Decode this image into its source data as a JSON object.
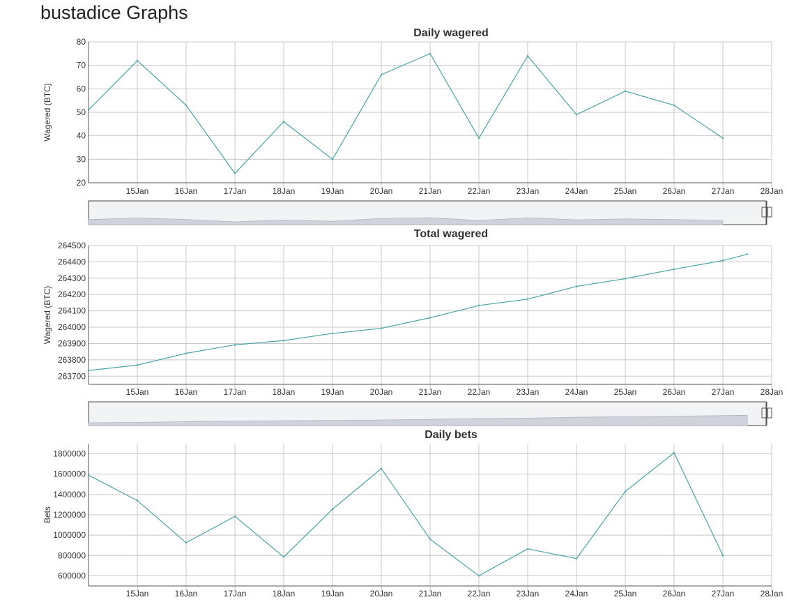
{
  "page": {
    "title": "bustadice Graphs"
  },
  "chart_data": [
    {
      "type": "line",
      "title": "Daily wagered",
      "ylabel": "Wagered (BTC)",
      "xlabel": "",
      "xlim": [
        "2018-01-14",
        "2018-01-28"
      ],
      "ylim": [
        20,
        80
      ],
      "yticks": [
        20,
        30,
        40,
        50,
        60,
        70,
        80
      ],
      "xtick_labels": [
        "15Jan",
        "16Jan",
        "17Jan",
        "18Jan",
        "19Jan",
        "20Jan",
        "21Jan",
        "22Jan",
        "23Jan",
        "24Jan",
        "25Jan",
        "26Jan",
        "27Jan",
        "28Jan"
      ],
      "grid": true,
      "navigator": true,
      "series": [
        {
          "x": [
            "2018-01-14",
            "2018-01-15",
            "2018-01-16",
            "2018-01-17",
            "2018-01-18",
            "2018-01-19",
            "2018-01-20",
            "2018-01-21",
            "2018-01-22",
            "2018-01-23",
            "2018-01-24",
            "2018-01-25",
            "2018-01-26",
            "2018-01-27"
          ],
          "values": [
            51,
            72,
            53,
            24,
            46,
            30,
            66,
            75,
            39,
            74,
            49,
            59,
            53,
            39
          ]
        }
      ]
    },
    {
      "type": "line",
      "title": "Total wagered",
      "ylabel": "Wagered (BTC)",
      "xlabel": "",
      "xlim": [
        "2018-01-14",
        "2018-01-28"
      ],
      "ylim": [
        263650,
        264500
      ],
      "yticks": [
        263700,
        263800,
        263900,
        264000,
        264100,
        264200,
        264300,
        264400,
        264500
      ],
      "xtick_labels": [
        "15Jan",
        "16Jan",
        "17Jan",
        "18Jan",
        "19Jan",
        "20Jan",
        "21Jan",
        "22Jan",
        "23Jan",
        "24Jan",
        "25Jan",
        "26Jan",
        "27Jan",
        "28Jan"
      ],
      "grid": true,
      "navigator": true,
      "series": [
        {
          "x": [
            "2018-01-14",
            "2018-01-15",
            "2018-01-16",
            "2018-01-17",
            "2018-01-18",
            "2018-01-19",
            "2018-01-20",
            "2018-01-21",
            "2018-01-22",
            "2018-01-23",
            "2018-01-24",
            "2018-01-25",
            "2018-01-26",
            "2018-01-27",
            "2018-01-27T12:00"
          ],
          "values": [
            263735,
            263768,
            263840,
            263892,
            263918,
            263962,
            263993,
            264058,
            264133,
            264172,
            264250,
            264297,
            264355,
            264408,
            264447
          ]
        }
      ]
    },
    {
      "type": "line",
      "title": "Daily bets",
      "ylabel": "Bets",
      "xlabel": "",
      "xlim": [
        "2018-01-14",
        "2018-01-28"
      ],
      "ylim": [
        500000,
        1900000
      ],
      "yticks": [
        600000,
        800000,
        1000000,
        1200000,
        1400000,
        1600000,
        1800000
      ],
      "xtick_labels": [
        "15Jan",
        "16Jan",
        "17Jan",
        "18Jan",
        "19Jan",
        "20Jan",
        "21Jan",
        "22Jan",
        "23Jan",
        "24Jan",
        "25Jan",
        "26Jan",
        "27Jan",
        "28Jan"
      ],
      "grid": true,
      "navigator": false,
      "series": [
        {
          "x": [
            "2018-01-14",
            "2018-01-15",
            "2018-01-16",
            "2018-01-17",
            "2018-01-18",
            "2018-01-19",
            "2018-01-20",
            "2018-01-21",
            "2018-01-22",
            "2018-01-23",
            "2018-01-24",
            "2018-01-25",
            "2018-01-26",
            "2018-01-27"
          ],
          "values": [
            1590000,
            1340000,
            925000,
            1185000,
            785000,
            1255000,
            1655000,
            960000,
            600000,
            865000,
            770000,
            1430000,
            1810000,
            800000
          ]
        }
      ]
    }
  ]
}
